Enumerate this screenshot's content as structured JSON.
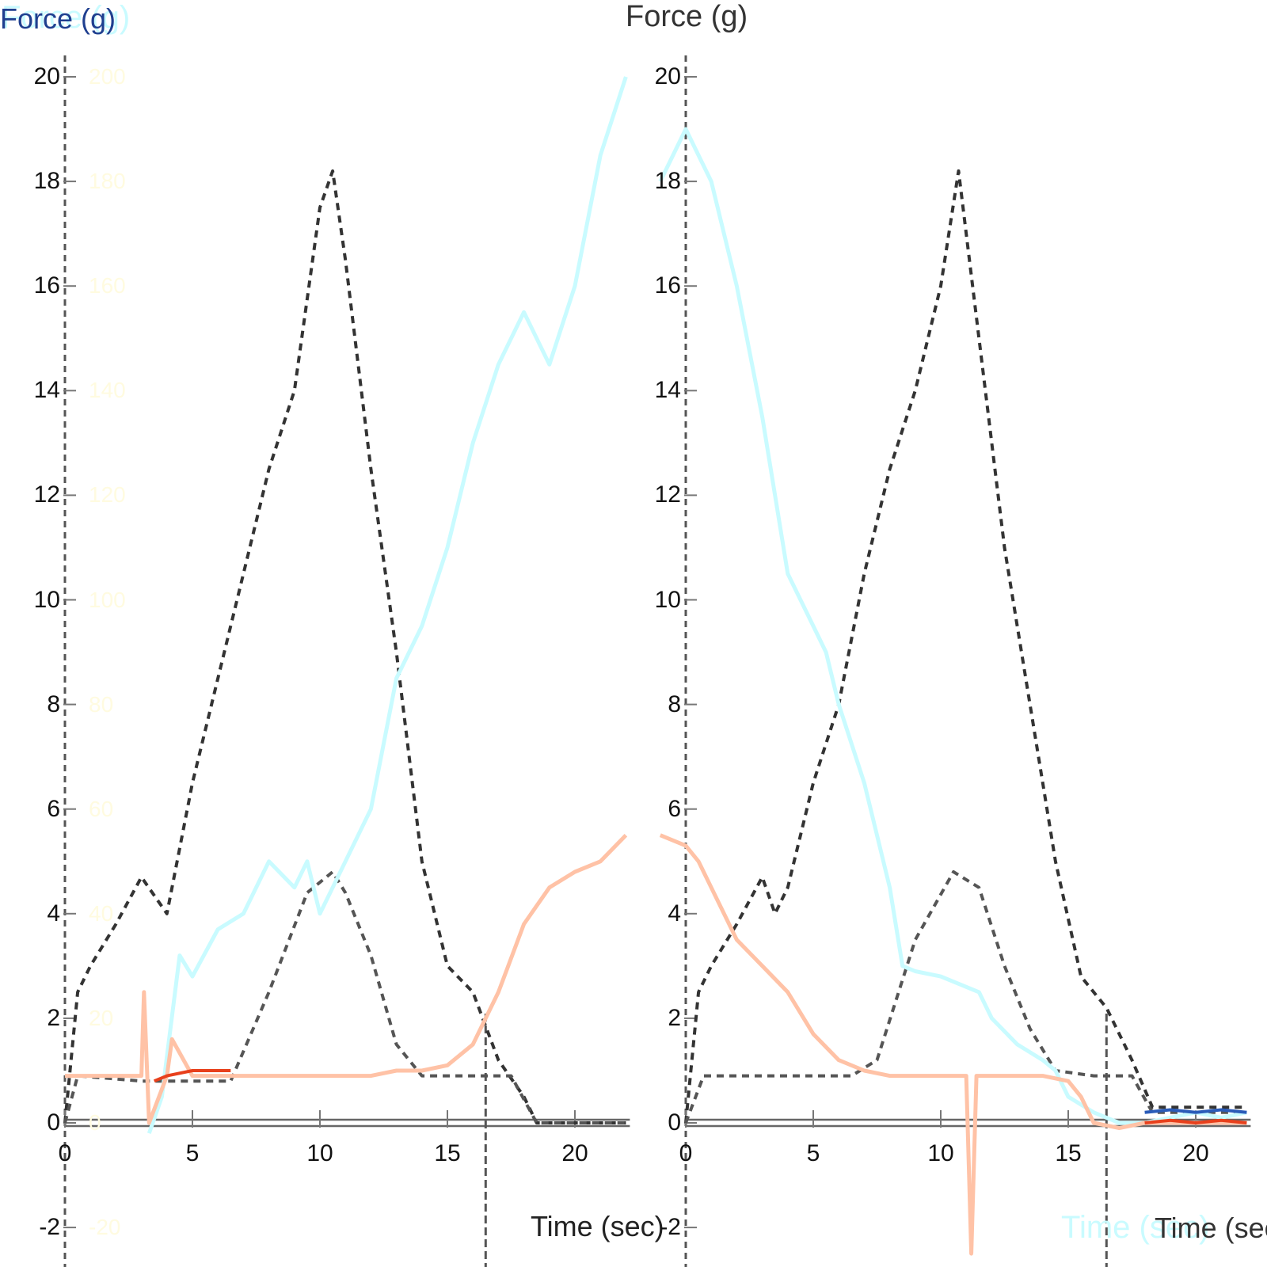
{
  "chart_data": [
    {
      "type": "line",
      "panel": "left",
      "title": "Force (g)",
      "title_overlay": "Force (g)",
      "title_overlay_color": "#c9fbff",
      "title_color": "#1f3f8f",
      "xlabel": "Time (sec)",
      "ylabel": "Force (g)",
      "xlim": [
        0,
        22
      ],
      "ylim": [
        -2,
        20
      ],
      "x_ticks": [
        0,
        5,
        10,
        15,
        20
      ],
      "y_ticks": [
        20,
        18,
        16,
        14,
        12,
        10,
        8,
        6,
        4,
        2,
        0,
        -2
      ],
      "secondary_y_ticks": [
        200,
        180,
        160,
        140,
        120,
        100,
        80,
        60,
        40,
        20,
        0,
        -20
      ],
      "grid": false,
      "vertical_markers": [
        0,
        16.5
      ],
      "series": [
        {
          "name": "dashed-dark",
          "color": "#333333",
          "style": "dashed",
          "x": [
            0,
            0.5,
            1,
            2,
            3,
            4,
            5,
            6,
            7,
            8,
            9,
            10,
            10.5,
            11,
            12,
            13,
            14,
            15,
            16,
            17,
            18,
            18.5,
            22
          ],
          "y": [
            0,
            2.5,
            3,
            3.8,
            4.7,
            4.0,
            6.5,
            8.5,
            10.5,
            12.5,
            14.0,
            17.5,
            18.2,
            16.5,
            12.5,
            9.0,
            5.0,
            3.0,
            2.5,
            1.2,
            0.5,
            0.0,
            0.0
          ]
        },
        {
          "name": "bell-gray",
          "color": "#555555",
          "style": "dashed",
          "x": [
            0,
            0.5,
            3,
            6.5,
            8,
            9.5,
            10.5,
            11,
            12,
            13,
            14,
            16,
            17.5,
            18.5,
            22
          ],
          "y": [
            0,
            0.9,
            0.8,
            0.8,
            2.5,
            4.4,
            4.8,
            4.4,
            3.2,
            1.5,
            0.9,
            0.9,
            0.9,
            0.0,
            0.0
          ]
        },
        {
          "name": "cyan",
          "color": "#c9fbff",
          "style": "solid",
          "x": [
            3.3,
            3.8,
            4.5,
            5,
            6,
            7,
            8,
            9,
            9.5,
            10,
            10.5,
            11,
            12,
            13,
            14,
            15,
            16,
            17,
            18,
            19,
            20,
            21,
            22
          ],
          "y": [
            -0.2,
            0.5,
            3.2,
            2.8,
            3.7,
            4.0,
            5.0,
            4.5,
            5.0,
            4.0,
            4.5,
            5.0,
            6.0,
            8.5,
            9.5,
            11.0,
            13.0,
            14.5,
            15.5,
            14.5,
            16.0,
            18.5,
            20.0
          ]
        },
        {
          "name": "orange",
          "color": "#ffc2a6",
          "style": "solid",
          "x": [
            0,
            1,
            2,
            3,
            3.1,
            3.3,
            4,
            4.2,
            5,
            6,
            7,
            8,
            9,
            10,
            11,
            12,
            13,
            14,
            15,
            16,
            17,
            18,
            19,
            20,
            21,
            22
          ],
          "y": [
            0.9,
            0.9,
            0.9,
            0.9,
            2.5,
            0.0,
            0.9,
            1.6,
            0.9,
            0.9,
            0.9,
            0.9,
            0.9,
            0.9,
            0.9,
            0.9,
            1.0,
            1.0,
            1.1,
            1.5,
            2.5,
            3.8,
            4.5,
            4.8,
            5.0,
            5.5
          ]
        },
        {
          "name": "red-overlay",
          "color": "#e8401c",
          "style": "solid",
          "x": [
            3.5,
            4,
            5,
            6,
            6.5
          ],
          "y": [
            0.8,
            0.9,
            1.0,
            1.0,
            1.0
          ]
        }
      ]
    },
    {
      "type": "line",
      "panel": "right",
      "title": "Force (g)",
      "xlabel": "Time (sec)",
      "xlabel_overlay": "Time (sec)",
      "xlabel_overlay_color": "#c9fbff",
      "ylabel": "Force (g)",
      "xlim": [
        0,
        22
      ],
      "ylim": [
        -2,
        20
      ],
      "x_ticks": [
        0,
        5,
        10,
        15,
        20
      ],
      "y_ticks": [
        20,
        18,
        16,
        14,
        12,
        10,
        8,
        6,
        4,
        2,
        0,
        -2
      ],
      "grid": false,
      "vertical_markers": [
        0,
        16.5
      ],
      "series": [
        {
          "name": "dashed-dark",
          "color": "#333333",
          "style": "dashed",
          "x": [
            0,
            0.5,
            1,
            2,
            3,
            3.5,
            4,
            5,
            6,
            7,
            8,
            9,
            10,
            10.7,
            11.5,
            12.5,
            13.5,
            14.5,
            15.5,
            16.5,
            17.5,
            18.3,
            22
          ],
          "y": [
            0,
            2.5,
            3,
            3.8,
            4.7,
            4.0,
            4.5,
            6.5,
            8.0,
            10.5,
            12.5,
            14.0,
            16.0,
            18.2,
            15.0,
            11.0,
            8.0,
            5.0,
            2.8,
            2.2,
            1.2,
            0.3,
            0.3
          ]
        },
        {
          "name": "bell-gray",
          "color": "#555555",
          "style": "dashed",
          "x": [
            0,
            0.7,
            3,
            6.5,
            7.5,
            9,
            10.5,
            11.5,
            12.5,
            13.5,
            14.5,
            16,
            17.5,
            18.3,
            22
          ],
          "y": [
            0,
            0.9,
            0.9,
            0.9,
            1.2,
            3.5,
            4.8,
            4.5,
            3.0,
            1.8,
            1.0,
            0.9,
            0.9,
            0.2,
            0.2
          ]
        },
        {
          "name": "cyan",
          "color": "#c9fbff",
          "style": "solid",
          "x": [
            -1,
            0,
            0.5,
            1,
            2,
            3,
            3.5,
            4,
            5,
            5.5,
            6,
            7,
            8,
            8.5,
            9,
            10,
            11,
            11.5,
            12,
            13,
            14,
            14.5,
            15,
            16,
            17,
            18,
            19,
            20,
            21,
            22
          ],
          "y": [
            18.0,
            19.0,
            18.5,
            18.0,
            16.0,
            13.5,
            12.0,
            10.5,
            9.5,
            9.0,
            8.0,
            6.5,
            4.5,
            3.0,
            2.9,
            2.8,
            2.6,
            2.5,
            2.0,
            1.5,
            1.2,
            1.0,
            0.5,
            0.2,
            0.0,
            0.0,
            0.1,
            0.2,
            0.1,
            0.2
          ]
        },
        {
          "name": "orange",
          "color": "#ffc2a6",
          "style": "solid",
          "x": [
            -1,
            0,
            0.5,
            1,
            2,
            3,
            4,
            5,
            6,
            7,
            8,
            9,
            10,
            11,
            11.2,
            11.4,
            11.6,
            12,
            13,
            14,
            15,
            15.5,
            16,
            17,
            18,
            19,
            20,
            22
          ],
          "y": [
            5.5,
            5.3,
            5.0,
            4.5,
            3.5,
            3.0,
            2.5,
            1.7,
            1.2,
            1.0,
            0.9,
            0.9,
            0.9,
            0.9,
            -2.5,
            0.9,
            0.9,
            0.9,
            0.9,
            0.9,
            0.8,
            0.5,
            0.0,
            -0.1,
            0.0,
            0.0,
            0.0,
            0.0
          ]
        },
        {
          "name": "red-overlay",
          "color": "#e8401c",
          "style": "solid",
          "x": [
            18,
            19,
            20,
            21,
            22
          ],
          "y": [
            0.0,
            0.05,
            0.0,
            0.05,
            0.0
          ]
        },
        {
          "name": "blue-overlay",
          "color": "#2a5bb8",
          "style": "solid",
          "x": [
            18,
            19,
            20,
            21,
            22
          ],
          "y": [
            0.2,
            0.25,
            0.2,
            0.25,
            0.2
          ]
        }
      ]
    }
  ],
  "labels": {
    "left_title_dark": "Force (g)",
    "left_title_light": "Force (g)",
    "right_title": "Force (g)",
    "left_xlabel": "Time (sec)",
    "right_xlabel_dark": "Time (sec)",
    "right_xlabel_light": "Time (sec)"
  }
}
